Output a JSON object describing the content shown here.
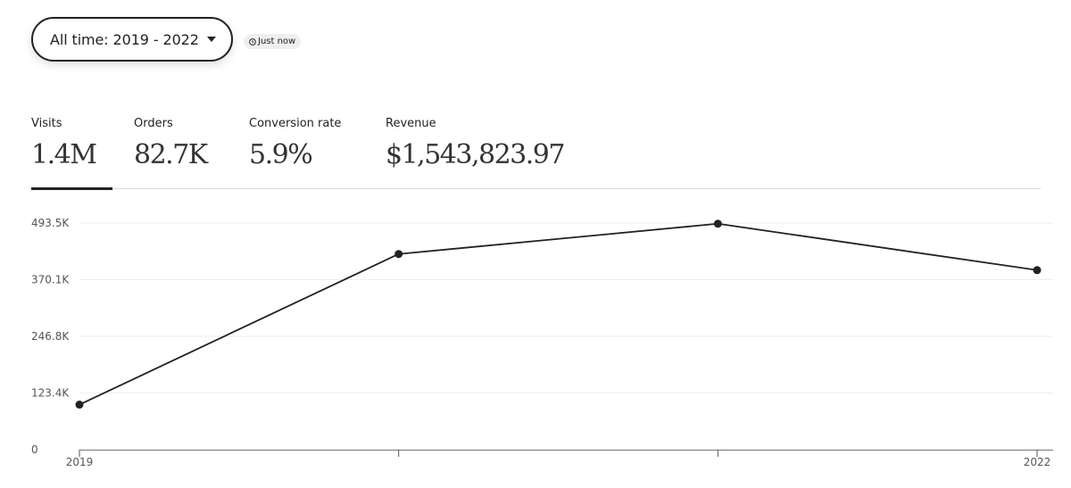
{
  "filter": {
    "range_label": "All time: 2019 - 2022",
    "updated_label": "Just now"
  },
  "metrics": [
    {
      "label": "Visits",
      "value": "1.4M",
      "selected": true
    },
    {
      "label": "Orders",
      "value": "82.7K",
      "selected": false
    },
    {
      "label": "Conversion rate",
      "value": "5.9%",
      "selected": false
    },
    {
      "label": "Revenue",
      "value": "$1,543,823.97",
      "selected": false
    }
  ],
  "chart_data": {
    "type": "line",
    "title": "",
    "xlabel": "",
    "ylabel": "",
    "x": [
      2019,
      2020,
      2021,
      2022
    ],
    "x_tick_labels": [
      "2019",
      "",
      "",
      "2022"
    ],
    "series": [
      {
        "values": [
          98000,
          426000,
          492000,
          391000
        ]
      }
    ],
    "y_ticks": [
      0,
      123400,
      246800,
      370100,
      493500
    ],
    "y_tick_labels": [
      "0",
      "123.4K",
      "246.8K",
      "370.1K",
      "493.5K"
    ],
    "ylim": [
      0,
      493500
    ],
    "grid": true,
    "legend": "none",
    "line_color": "#222222",
    "grid_color": "#eeeeee"
  }
}
